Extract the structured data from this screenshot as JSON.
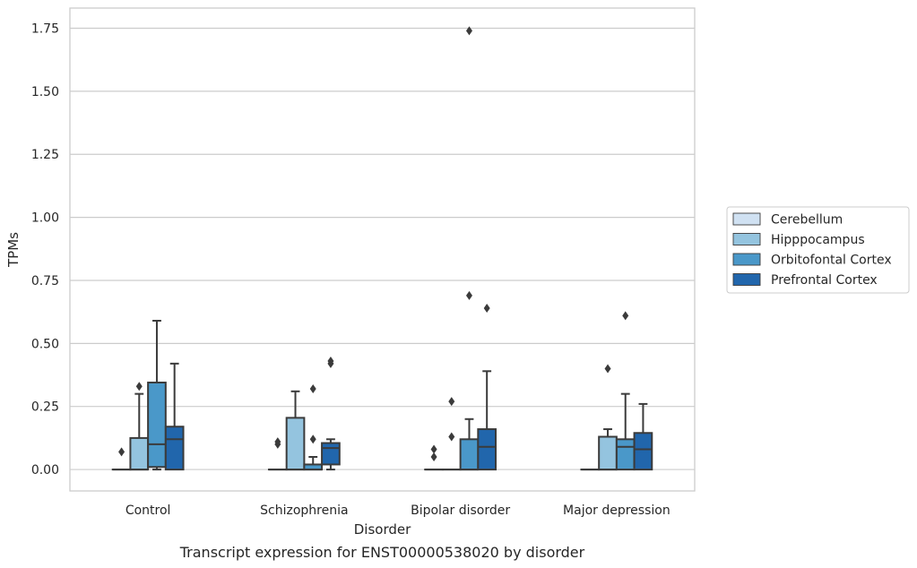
{
  "chart_data": {
    "type": "boxplot",
    "caption": "Transcript expression for ENST00000538020 by disorder",
    "xlabel": "Disorder",
    "ylabel": "TPMs",
    "ylim": [
      -0.085,
      1.83
    ],
    "yticks": [
      0.0,
      0.25,
      0.5,
      0.75,
      1.0,
      1.25,
      1.5,
      1.75
    ],
    "ytick_labels": [
      "0.00",
      "0.25",
      "0.50",
      "0.75",
      "1.00",
      "1.25",
      "1.50",
      "1.75"
    ],
    "grid": "horizontal",
    "legend_position": "right",
    "categories": [
      "Control",
      "Schizophrenia",
      "Bipolar disorder",
      "Major depression"
    ],
    "series": [
      {
        "name": "Cerebellum",
        "color": "#d0e1f2",
        "boxes": [
          {
            "whislo": 0,
            "q1": 0,
            "med": 0,
            "q3": 0,
            "whishi": 0,
            "fliers": [
              0.07
            ]
          },
          {
            "whislo": 0,
            "q1": 0,
            "med": 0,
            "q3": 0,
            "whishi": 0,
            "fliers": [
              0.1,
              0.11
            ]
          },
          {
            "whislo": 0,
            "q1": 0,
            "med": 0,
            "q3": 0,
            "whishi": 0,
            "fliers": [
              0.05,
              0.08
            ]
          },
          {
            "whislo": 0,
            "q1": 0,
            "med": 0,
            "q3": 0,
            "whishi": 0,
            "fliers": []
          }
        ]
      },
      {
        "name": "Hipppocampus",
        "color": "#94c4df",
        "boxes": [
          {
            "whislo": 0,
            "q1": 0,
            "med": 0,
            "q3": 0.125,
            "whishi": 0.3,
            "fliers": [
              0.33
            ]
          },
          {
            "whislo": 0,
            "q1": 0,
            "med": 0,
            "q3": 0.205,
            "whishi": 0.31,
            "fliers": []
          },
          {
            "whislo": 0,
            "q1": 0,
            "med": 0,
            "q3": 0,
            "whishi": 0,
            "fliers": [
              0.13,
              0.27
            ]
          },
          {
            "whislo": 0,
            "q1": 0,
            "med": 0,
            "q3": 0.13,
            "whishi": 0.16,
            "fliers": [
              0.4
            ]
          }
        ]
      },
      {
        "name": "Orbitofontal Cortex",
        "color": "#4a98c9",
        "boxes": [
          {
            "whislo": 0,
            "q1": 0.01,
            "med": 0.1,
            "q3": 0.345,
            "whishi": 0.59,
            "fliers": []
          },
          {
            "whislo": 0,
            "q1": 0,
            "med": 0,
            "q3": 0.02,
            "whishi": 0.05,
            "fliers": [
              0.12,
              0.32
            ]
          },
          {
            "whislo": 0,
            "q1": 0,
            "med": 0,
            "q3": 0.12,
            "whishi": 0.2,
            "fliers": [
              0.69,
              1.74
            ]
          },
          {
            "whislo": 0,
            "q1": 0,
            "med": 0.09,
            "q3": 0.12,
            "whishi": 0.3,
            "fliers": [
              0.61
            ]
          }
        ]
      },
      {
        "name": "Prefrontal Cortex",
        "color": "#2166ac",
        "boxes": [
          {
            "whislo": 0,
            "q1": 0,
            "med": 0.12,
            "q3": 0.17,
            "whishi": 0.42,
            "fliers": []
          },
          {
            "whislo": 0,
            "q1": 0.02,
            "med": 0.085,
            "q3": 0.105,
            "whishi": 0.12,
            "fliers": [
              0.42,
              0.43
            ]
          },
          {
            "whislo": 0,
            "q1": 0,
            "med": 0.09,
            "q3": 0.16,
            "whishi": 0.39,
            "fliers": [
              0.64
            ]
          },
          {
            "whislo": 0,
            "q1": 0,
            "med": 0.08,
            "q3": 0.145,
            "whishi": 0.26,
            "fliers": []
          }
        ]
      }
    ]
  }
}
